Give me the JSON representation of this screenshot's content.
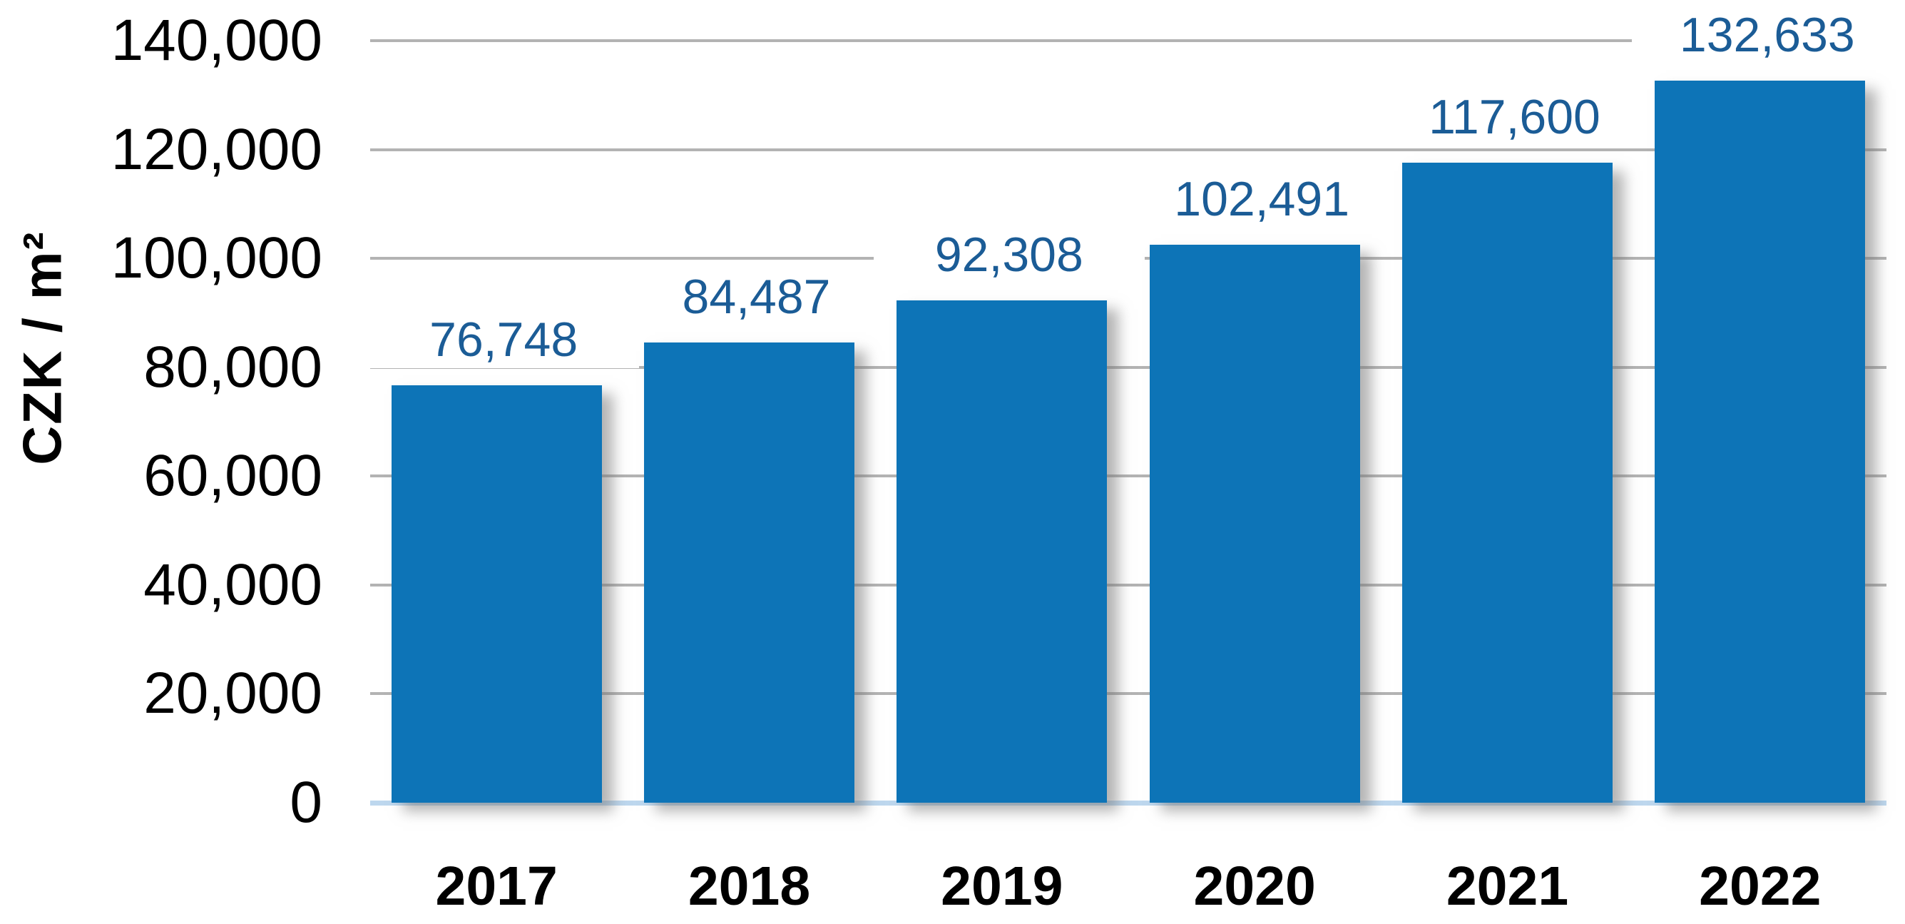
{
  "chart_data": {
    "type": "bar",
    "title": "",
    "xlabel": "",
    "ylabel": "CZK / m²",
    "categories": [
      "2017",
      "2018",
      "2019",
      "2020",
      "2021",
      "2022"
    ],
    "values": [
      76748,
      84487,
      92308,
      102491,
      117600,
      132633
    ],
    "data_labels": [
      "76,748",
      "84,487",
      "92,308",
      "102,491",
      "117,600",
      "132,633"
    ],
    "yticks": [
      "0",
      "20,000",
      "40,000",
      "60,000",
      "80,000",
      "100,000",
      "120,000",
      "140,000"
    ],
    "ytick_step": 20000,
    "ylim": [
      0,
      140000
    ],
    "grid": true,
    "legend": false,
    "colors": {
      "bar": "#0d74b7",
      "data_label": "#1b5c96",
      "gridline": "#b3b3b3",
      "baseline": "#bdd7ee",
      "axis_text": "#000000"
    }
  }
}
